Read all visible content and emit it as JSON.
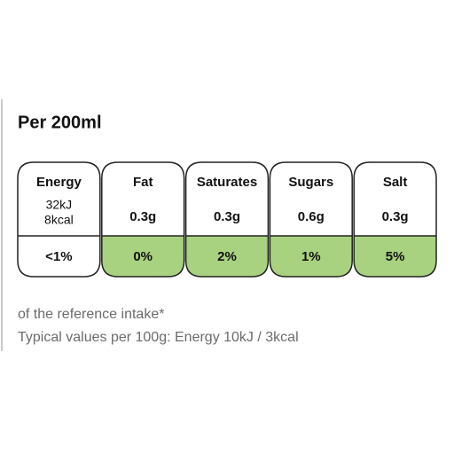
{
  "title": "Per 200ml",
  "columns": [
    {
      "name": "Energy",
      "amount": [
        "32kJ",
        "8kcal"
      ],
      "percent": "<1%",
      "fill": "#ffffff"
    },
    {
      "name": "Fat",
      "amount": [
        "0.3g"
      ],
      "percent": "0%",
      "fill": "#a8d27f"
    },
    {
      "name": "Saturates",
      "amount": [
        "0.3g"
      ],
      "percent": "2%",
      "fill": "#a8d27f"
    },
    {
      "name": "Sugars",
      "amount": [
        "0.6g"
      ],
      "percent": "1%",
      "fill": "#a8d27f"
    },
    {
      "name": "Salt",
      "amount": [
        "0.3g"
      ],
      "percent": "5%",
      "fill": "#a8d27f"
    }
  ],
  "footer": [
    "of the reference intake*",
    "Typical values per 100g: Energy 10kJ / 3kcal"
  ]
}
